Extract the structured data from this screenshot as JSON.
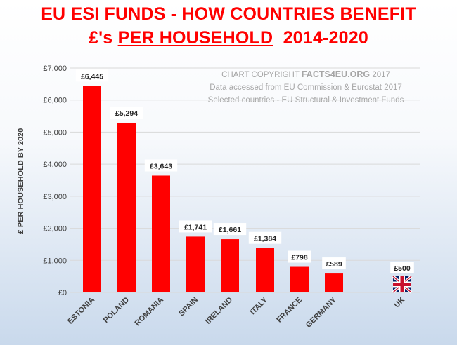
{
  "title_line1": "EU ESI FUNDS - HOW COUNTRIES BENEFIT",
  "title_line2_prefix": "£'s",
  "title_line2_emph": "PER HOUSEHOLD",
  "title_line2_suffix": "2014-2020",
  "copyright": {
    "line1_prefix": "CHART COPYRIGHT",
    "line1_brand": "FACTS4EU.ORG",
    "line1_suffix": "2017",
    "line2": "Data accessed from EU Commission & Eurostat 2017",
    "line3": "Selected countries - EU Structural & Investment Funds"
  },
  "colors": {
    "bar": "#ff0000",
    "title": "#ff0000",
    "grid": "#d9d9d9"
  },
  "flag_icon": "union-jack-flag-icon",
  "chart_data": {
    "type": "bar",
    "title": "EU ESI FUNDS - HOW COUNTRIES BENEFIT £'s PER HOUSEHOLD 2014-2020",
    "xlabel": "",
    "ylabel": "£ PER HOUSEHOLD BY 2020",
    "ylim": [
      0,
      7000
    ],
    "yticks": [
      "£0",
      "£1,000",
      "£2,000",
      "£3,000",
      "£4,000",
      "£5,000",
      "£6,000",
      "£7,000"
    ],
    "categories": [
      "ESTONIA",
      "POLAND",
      "ROMANIA",
      "SPAIN",
      "IRELAND",
      "ITALY",
      "FRANCE",
      "GERMANY",
      "UK"
    ],
    "values": [
      6445,
      5294,
      3643,
      1741,
      1661,
      1384,
      798,
      589,
      500
    ],
    "labels": [
      "£6,445",
      "£5,294",
      "£3,643",
      "£1,741",
      "£1,661",
      "£1,384",
      "£798",
      "£589",
      "£500"
    ],
    "grid": true,
    "legend": "none",
    "note": "UK shown as a flag instead of a red bar"
  }
}
